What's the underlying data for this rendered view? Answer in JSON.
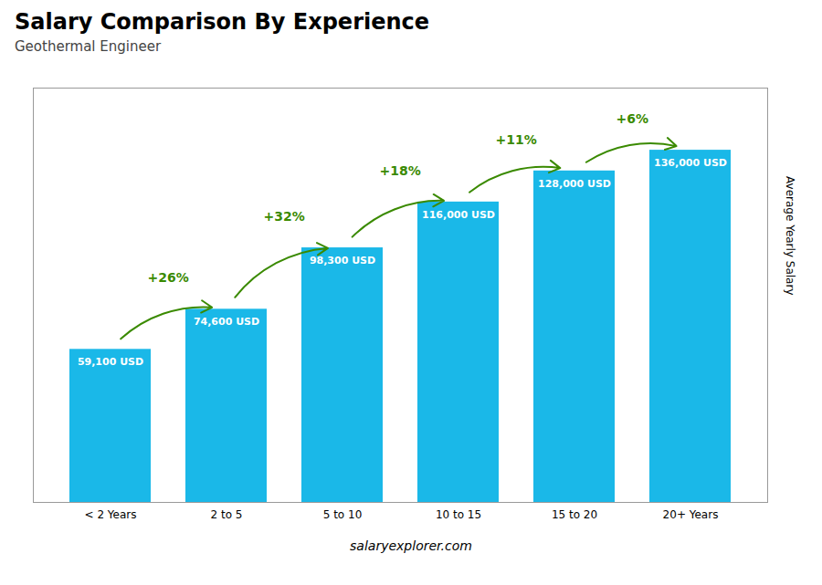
{
  "chart_data": {
    "type": "bar",
    "title": "Salary Comparison By Experience",
    "subtitle": "Geothermal Engineer",
    "categories": [
      "< 2 Years",
      "2 to 5",
      "5 to 10",
      "10 to 15",
      "15 to 20",
      "20+ Years"
    ],
    "values": [
      59100,
      74600,
      98300,
      116000,
      128000,
      136000
    ],
    "value_labels": [
      "59,100 USD",
      "74,600 USD",
      "98,300 USD",
      "116,000 USD",
      "128,000 USD",
      "136,000 USD"
    ],
    "data_labels": true,
    "annotations": [
      "+26%",
      "+32%",
      "+18%",
      "+11%",
      "+6%"
    ],
    "ylabel": "Average Yearly Salary",
    "footer": "salaryexplorer.com",
    "color": "#1ab8e8",
    "ylim": [
      0,
      160000
    ],
    "yticks": [],
    "tick_labels": "x",
    "grid": false
  }
}
